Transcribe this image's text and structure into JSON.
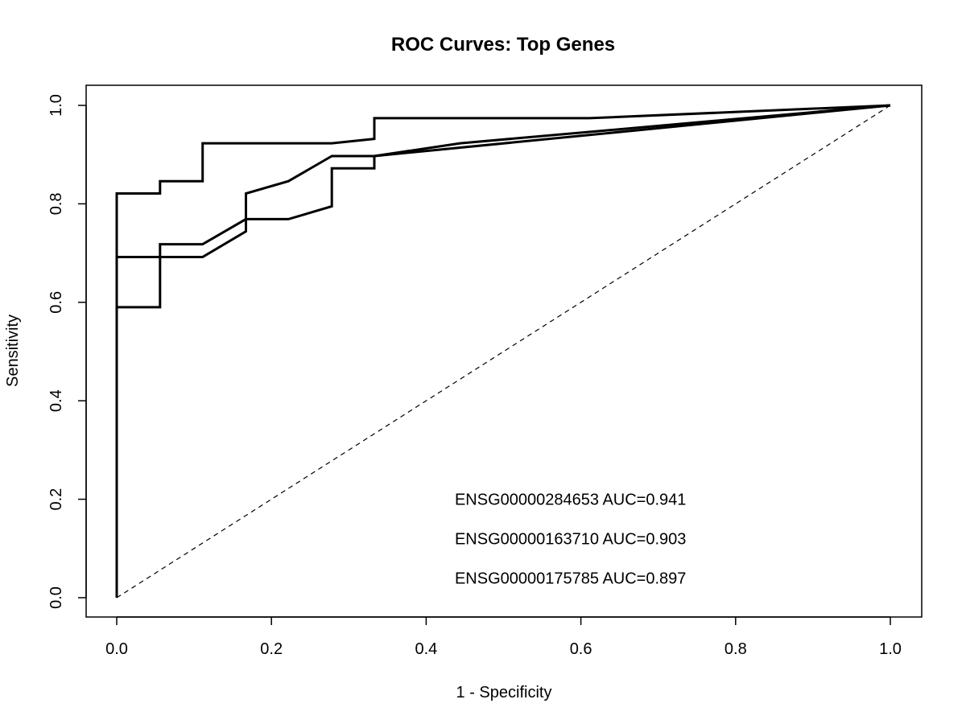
{
  "chart_data": {
    "type": "line",
    "title": "ROC Curves: Top Genes",
    "xlabel": "1 - Specificity",
    "ylabel": "Sensitivity",
    "xlim": [
      0,
      1
    ],
    "ylim": [
      0,
      1
    ],
    "xticks": [
      "0.0",
      "0.2",
      "0.4",
      "0.6",
      "0.8",
      "1.0"
    ],
    "yticks": [
      "0.0",
      "0.2",
      "0.4",
      "0.6",
      "0.8",
      "1.0"
    ],
    "grid": false,
    "series": [
      {
        "x": [
          0,
          0,
          0.056,
          0.056,
          0.111,
          0.111,
          0.278,
          0.333,
          0.333,
          0.611,
          1.0
        ],
        "y": [
          0,
          0.821,
          0.821,
          0.846,
          0.846,
          0.923,
          0.923,
          0.932,
          0.974,
          0.974,
          1.0
        ],
        "color": "#000000"
      },
      {
        "x": [
          0,
          0,
          0.111,
          0.167,
          0.167,
          0.222,
          0.278,
          0.333,
          0.444,
          1.0
        ],
        "y": [
          0,
          0.692,
          0.692,
          0.744,
          0.821,
          0.846,
          0.897,
          0.897,
          0.923,
          1.0
        ],
        "color": "#000000"
      },
      {
        "x": [
          0,
          0,
          0.056,
          0.056,
          0.111,
          0.167,
          0.222,
          0.278,
          0.278,
          0.333,
          0.333,
          1.0
        ],
        "y": [
          0,
          0.59,
          0.59,
          0.718,
          0.718,
          0.769,
          0.769,
          0.795,
          0.872,
          0.872,
          0.897,
          1.0
        ],
        "color": "#000000"
      }
    ],
    "reference_line": {
      "x": [
        0,
        1
      ],
      "y": [
        0,
        1
      ],
      "style": "dashed"
    },
    "annotations": [
      {
        "text": "ENSG00000284653 AUC=0.941",
        "x": 0.437,
        "y": 0.2
      },
      {
        "text": "ENSG00000163710 AUC=0.903",
        "x": 0.437,
        "y": 0.12
      },
      {
        "text": "ENSG00000175785 AUC=0.897",
        "x": 0.437,
        "y": 0.04
      }
    ]
  }
}
